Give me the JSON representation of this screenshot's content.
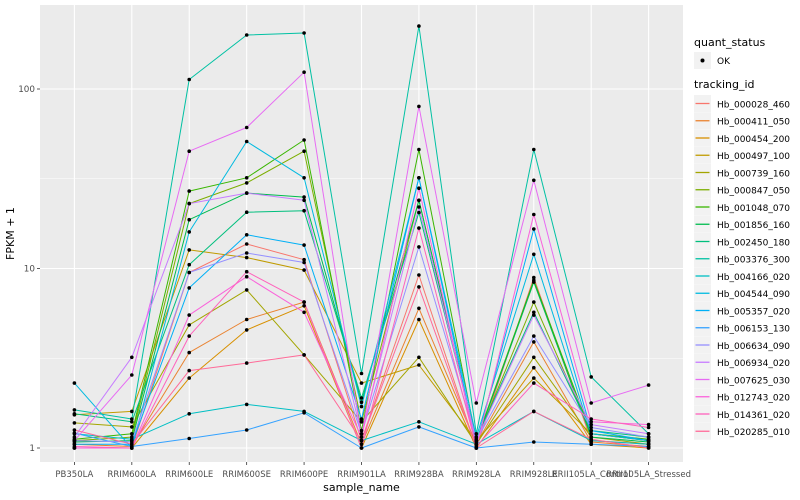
{
  "chart_data": {
    "type": "line",
    "title": "",
    "xlabel": "sample_name",
    "ylabel": "FPKM + 1",
    "yscale": "log10",
    "ylim": [
      0.84,
      295
    ],
    "yticks": [
      1,
      10,
      100
    ],
    "yminor": [
      3.162,
      31.62
    ],
    "grid": "on",
    "legend_position": "right",
    "categories": [
      "PB350LA",
      "RRIM600LA",
      "RRIM600LE",
      "RRIM600SE",
      "RRIM600PE",
      "RRIM901LA",
      "RRIM928BA",
      "RRIM928LA",
      "RRIM928LE",
      "RRII105LA_Control",
      "RRII105LA_Stressed"
    ],
    "legend_quant_status": {
      "title": "quant_status",
      "items": [
        {
          "label": "OK",
          "symbol": "point-icon"
        }
      ]
    },
    "legend_tracking_id": {
      "title": "tracking_id"
    },
    "series": [
      {
        "name": "Hb_000028_460",
        "color": "#F8766D",
        "values": [
          1.0,
          1.0,
          9.5,
          13.7,
          11.2,
          1.1,
          9.2,
          1.0,
          8.9,
          1.1,
          1.05
        ]
      },
      {
        "name": "Hb_000411_050",
        "color": "#EA8331",
        "values": [
          1.05,
          1.02,
          3.4,
          5.2,
          6.5,
          1.05,
          6.0,
          1.05,
          3.9,
          1.08,
          1.02
        ]
      },
      {
        "name": "Hb_000454_200",
        "color": "#D89000",
        "values": [
          1.0,
          1.0,
          2.45,
          4.55,
          6.2,
          1.0,
          5.2,
          1.0,
          2.8,
          1.05,
          1.0
        ]
      },
      {
        "name": "Hb_000497_100",
        "color": "#C09B00",
        "values": [
          1.53,
          1.6,
          12.7,
          11.5,
          9.8,
          2.3,
          2.9,
          1.1,
          2.45,
          1.2,
          1.1
        ]
      },
      {
        "name": "Hb_000739_160",
        "color": "#A3A500",
        "values": [
          1.38,
          1.31,
          4.85,
          7.6,
          3.3,
          1.4,
          3.2,
          1.05,
          3.2,
          1.15,
          1.05
        ]
      },
      {
        "name": "Hb_000847_050",
        "color": "#7CAE00",
        "values": [
          1.1,
          1.15,
          23,
          30,
          45,
          1.4,
          24,
          1.1,
          6.5,
          1.2,
          1.1
        ]
      },
      {
        "name": "Hb_001048_070",
        "color": "#39B600",
        "values": [
          1.12,
          1.2,
          27,
          32,
          52,
          1.25,
          46,
          1.1,
          8.6,
          1.2,
          1.12
        ]
      },
      {
        "name": "Hb_001856_160",
        "color": "#00BB4E",
        "values": [
          1.08,
          1.1,
          18.7,
          26.3,
          25,
          1.8,
          24,
          1.08,
          8.4,
          1.15,
          1.08
        ]
      },
      {
        "name": "Hb_002450_180",
        "color": "#00BF7D",
        "values": [
          1.55,
          1.4,
          10.5,
          20.6,
          21,
          1.9,
          20.5,
          1.12,
          5.7,
          1.25,
          1.15
        ]
      },
      {
        "name": "Hb_003376_300",
        "color": "#00C1A3",
        "values": [
          1.63,
          1.45,
          113,
          200,
          205,
          2.6,
          224,
          1.2,
          46,
          2.49,
          1.2
        ]
      },
      {
        "name": "Hb_004166_020",
        "color": "#00BFC4",
        "values": [
          1.2,
          1.12,
          1.55,
          1.75,
          1.6,
          1.1,
          1.4,
          1.05,
          1.6,
          1.1,
          1.05
        ]
      },
      {
        "name": "Hb_004544_090",
        "color": "#00BAE0",
        "values": [
          2.3,
          1.0,
          16,
          51,
          32,
          1.7,
          32,
          1.15,
          12,
          1.2,
          1.1
        ]
      },
      {
        "name": "Hb_005357_020",
        "color": "#00B0F6",
        "values": [
          1.05,
          1.05,
          7.8,
          15.4,
          13.5,
          1.45,
          32,
          1.05,
          16.6,
          1.25,
          1.1
        ]
      },
      {
        "name": "Hb_006153_130",
        "color": "#35A2FF",
        "values": [
          1.21,
          1.02,
          1.13,
          1.26,
          1.57,
          1.0,
          1.31,
          1.0,
          1.08,
          1.05,
          1.02
        ]
      },
      {
        "name": "Hb_006634_090",
        "color": "#9590FF",
        "values": [
          1.1,
          1.08,
          9.5,
          12.2,
          10.8,
          1.2,
          13.2,
          1.1,
          4.2,
          1.3,
          1.15
        ]
      },
      {
        "name": "Hb_006934_020",
        "color": "#C77CFF",
        "values": [
          1.15,
          3.2,
          23,
          26.3,
          24,
          1.2,
          22,
          1.1,
          5.5,
          1.35,
          1.2
        ]
      },
      {
        "name": "Hb_007625_030",
        "color": "#E76BF3",
        "values": [
          1.1,
          2.55,
          45,
          61,
          124,
          1.15,
          80,
          1.78,
          31,
          1.78,
          2.24
        ]
      },
      {
        "name": "Hb_012743_020",
        "color": "#FA62DB",
        "values": [
          1.0,
          1.0,
          5.5,
          9.0,
          5.7,
          1.15,
          28,
          1.0,
          20,
          1.4,
          1.35
        ]
      },
      {
        "name": "Hb_014361_020",
        "color": "#FF62BC",
        "values": [
          1.02,
          1.0,
          4.2,
          9.6,
          6.5,
          1.0,
          16.8,
          1.02,
          2.3,
          1.45,
          1.3
        ]
      },
      {
        "name": "Hb_020285_010",
        "color": "#FF6A98",
        "values": [
          1.26,
          1.05,
          2.7,
          2.97,
          3.3,
          1.1,
          7.9,
          1.0,
          1.6,
          1.12,
          1.0
        ]
      }
    ],
    "style": {
      "panel_bg": "#EBEBEB",
      "plot_bg": "#FFFFFF",
      "grid_color": "#FFFFFF",
      "point_color": "#000000",
      "tick_color": "#333333",
      "tick_label_color": "#4D4D4D",
      "title_color": "#000000",
      "legend_key_bg": "#F2F2F2"
    }
  }
}
